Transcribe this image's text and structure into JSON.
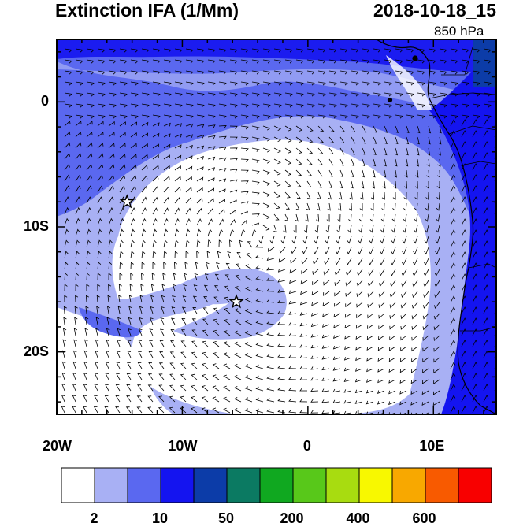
{
  "header": {
    "title": "Extinction IFA (1/Mm)",
    "datetime": "2018-10-18_15",
    "level": "850 hPa"
  },
  "axes": {
    "lon_labels": [
      "20W",
      "10W",
      "0",
      "10E"
    ],
    "lat_labels": [
      "0",
      "10S",
      "20S"
    ],
    "lon_range": [
      -20,
      15
    ],
    "lat_range": [
      -25,
      5
    ]
  },
  "markers": [
    {
      "name": "star",
      "lon": -14.4,
      "lat": -8.0
    },
    {
      "name": "star",
      "lon": -5.7,
      "lat": -16.0
    }
  ],
  "colorbar": {
    "labels": [
      "2",
      "10",
      "50",
      "200",
      "400",
      "600"
    ],
    "colors": [
      "#ffffff",
      "#a8b0f4",
      "#5a68f0",
      "#1414f0",
      "#0c3ca8",
      "#0b7a62",
      "#10a820",
      "#58c81a",
      "#a8dc10",
      "#f8f800",
      "#f8a800",
      "#f85a00",
      "#f80000"
    ]
  },
  "colors": {
    "light": "#a8b0f4",
    "medium": "#5a68f0",
    "dark": "#1414f0",
    "coast": "#000000"
  }
}
